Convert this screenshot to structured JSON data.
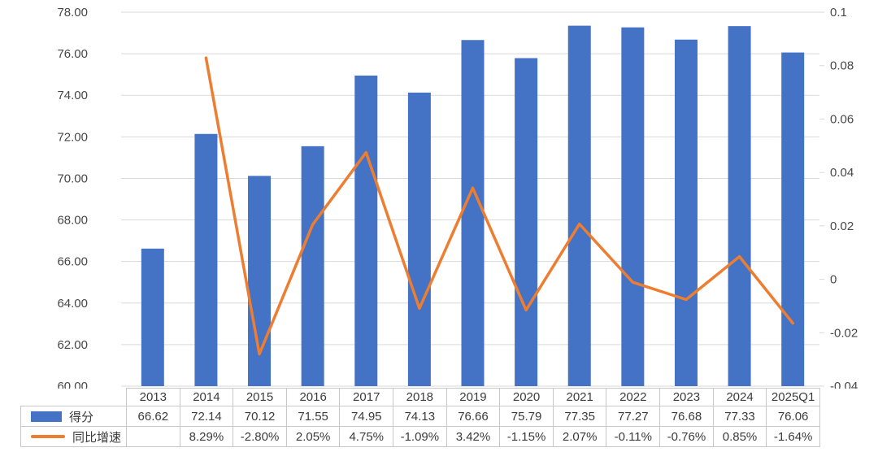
{
  "chart_data": {
    "type": "combo",
    "categories": [
      "2013",
      "2014",
      "2015",
      "2016",
      "2017",
      "2018",
      "2019",
      "2020",
      "2021",
      "2022",
      "2023",
      "2024",
      "2025Q1"
    ],
    "series": [
      {
        "name": "得分",
        "type": "bar",
        "color": "#4472C4",
        "axis": "left",
        "values": [
          66.62,
          72.14,
          70.12,
          71.55,
          74.95,
          74.13,
          76.66,
          75.79,
          77.35,
          77.27,
          76.68,
          77.33,
          76.06
        ]
      },
      {
        "name": "同比增速",
        "type": "line",
        "color": "#ED7D31",
        "axis": "right",
        "values": [
          null,
          0.0829,
          -0.028,
          0.0205,
          0.0475,
          -0.0109,
          0.0342,
          -0.0115,
          0.0207,
          -0.0011,
          -0.0076,
          0.0085,
          -0.0164
        ]
      }
    ],
    "left_axis": {
      "min": 60,
      "max": 78,
      "step": 2,
      "ticks": [
        "78.00",
        "76.00",
        "74.00",
        "72.00",
        "70.00",
        "68.00",
        "66.00",
        "64.00",
        "62.00",
        "60.00"
      ]
    },
    "right_axis": {
      "min": -0.04,
      "max": 0.1,
      "step": 0.02,
      "ticks": [
        "0.1",
        "0.08",
        "0.06",
        "0.04",
        "0.02",
        "0",
        "-0.02",
        "-0.04"
      ]
    },
    "grid": true,
    "legend_position": "table-left",
    "gridline_color": "#d9d9d9"
  },
  "table": {
    "header": [
      "",
      "2013",
      "2014",
      "2015",
      "2016",
      "2017",
      "2018",
      "2019",
      "2020",
      "2021",
      "2022",
      "2023",
      "2024",
      "2025Q1"
    ],
    "rows": [
      {
        "legend": "得分",
        "swatch": "bar",
        "cells": [
          "66.62",
          "72.14",
          "70.12",
          "71.55",
          "74.95",
          "74.13",
          "76.66",
          "75.79",
          "77.35",
          "77.27",
          "76.68",
          "77.33",
          "76.06"
        ]
      },
      {
        "legend": "同比增速",
        "swatch": "line",
        "cells": [
          "",
          "8.29%",
          "-2.80%",
          "2.05%",
          "4.75%",
          "-1.09%",
          "3.42%",
          "-1.15%",
          "2.07%",
          "-0.11%",
          "-0.76%",
          "0.85%",
          "-1.64%"
        ]
      }
    ]
  },
  "colors": {
    "bar": "#4472C4",
    "line": "#ED7D31",
    "gridline": "#d9d9d9",
    "axis_text": "#474747",
    "table_border": "#c8c8c8",
    "table_text": "#3b3b3b"
  }
}
